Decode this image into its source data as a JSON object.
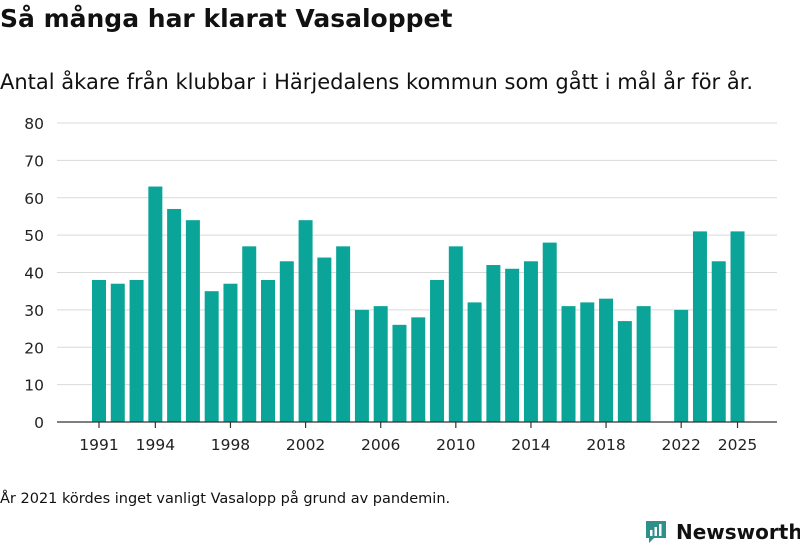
{
  "colors": {
    "bar": "#0aa598",
    "grid": "#d9d9d9",
    "axis": "#333333",
    "text": "#222222",
    "brand": "#2f8f89"
  },
  "chart_data": {
    "type": "bar",
    "title": "Så många har klarat Vasaloppet",
    "subtitle": "Antal åkare från klubbar i Härjedalens kommun som gått i mål år för år.",
    "xlabel": "",
    "ylabel": "",
    "ylim": [
      0,
      80
    ],
    "yticks": [
      0,
      10,
      20,
      30,
      40,
      50,
      60,
      70,
      80
    ],
    "xlim": [
      1991,
      2025
    ],
    "xticks": [
      1991,
      1994,
      1998,
      2002,
      2006,
      2010,
      2014,
      2018,
      2022,
      2025
    ],
    "grid": true,
    "categories": [
      1991,
      1992,
      1993,
      1994,
      1995,
      1996,
      1997,
      1998,
      1999,
      2000,
      2001,
      2002,
      2003,
      2004,
      2005,
      2006,
      2007,
      2008,
      2009,
      2010,
      2011,
      2012,
      2013,
      2014,
      2015,
      2016,
      2017,
      2018,
      2019,
      2020,
      2022,
      2023,
      2024,
      2025
    ],
    "values": [
      38,
      37,
      38,
      63,
      57,
      54,
      35,
      37,
      47,
      38,
      43,
      54,
      44,
      47,
      30,
      31,
      26,
      28,
      38,
      47,
      32,
      42,
      41,
      43,
      48,
      31,
      32,
      33,
      27,
      31,
      30,
      51,
      43,
      51
    ]
  },
  "note": "År 2021 kördes inget vanligt Vasalopp på grund av pandemin.",
  "brand": {
    "name": "Newsworthy",
    "icon": "bar-chart-logo-icon"
  }
}
